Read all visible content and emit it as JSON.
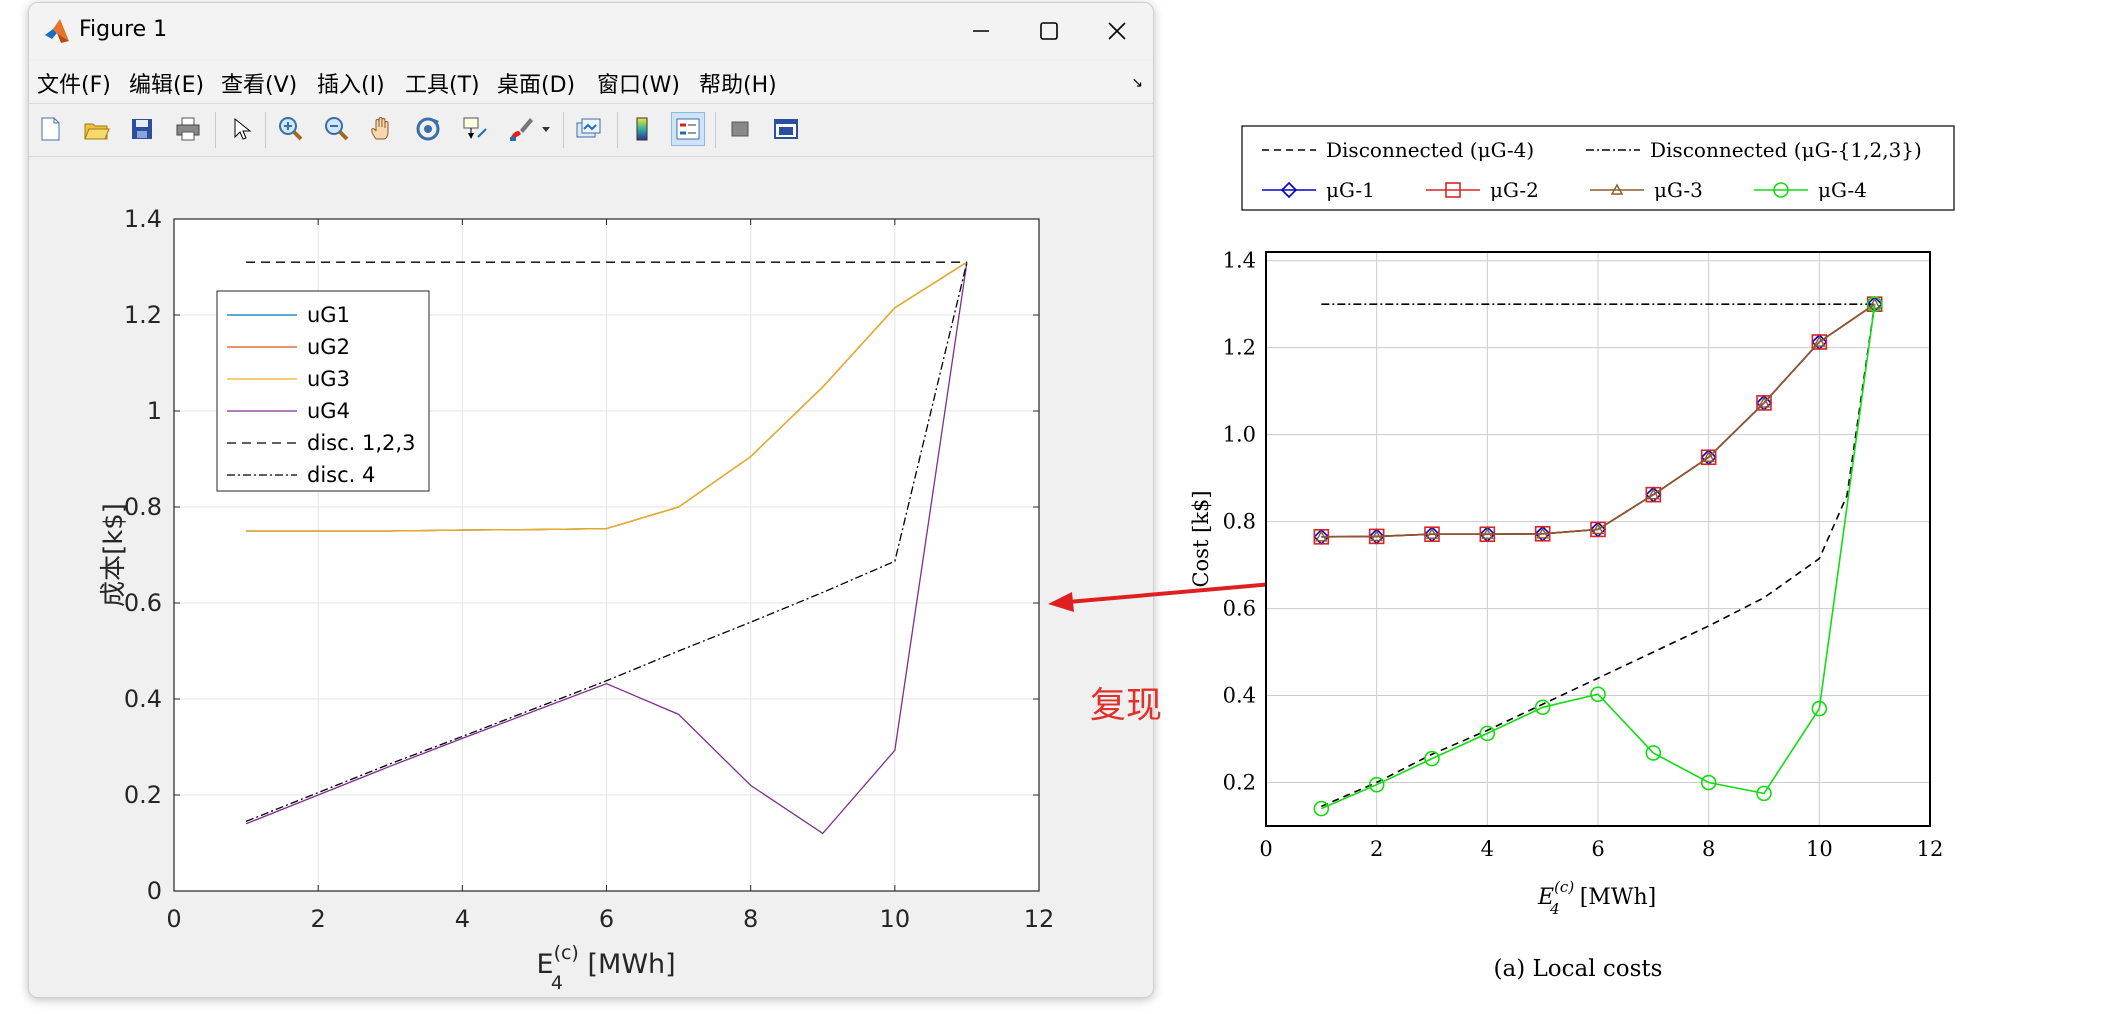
{
  "window": {
    "title": "Figure 1",
    "controls": [
      "minimize",
      "maximize",
      "close"
    ]
  },
  "menu": [
    "文件(F)",
    "编辑(E)",
    "查看(V)",
    "插入(I)",
    "工具(T)",
    "桌面(D)",
    "窗口(W)",
    "帮助(H)"
  ],
  "toolbar": [
    "new-figure-icon",
    "open-icon",
    "save-icon",
    "print-icon",
    "pointer-icon",
    "zoom-in-icon",
    "zoom-out-icon",
    "pan-icon",
    "rotate-icon",
    "data-cursor-icon",
    "brush-icon",
    "brush-dropdown-icon",
    "link-plot-icon",
    "colorbar-icon",
    "legend-icon",
    "hide-tools-icon",
    "dock-icon"
  ],
  "annotation": {
    "label": "复现",
    "color": "#e0302a"
  },
  "left_chart": {
    "type": "line",
    "xlabel_base": "E",
    "xlabel_sub": "4",
    "xlabel_sup": "(c)",
    "xlabel_unit": " [MWh]",
    "ylabel": "成本[k$]",
    "xlim": [
      0,
      12
    ],
    "ylim": [
      0,
      1.4
    ],
    "xticks": [
      "0",
      "2",
      "4",
      "6",
      "8",
      "10",
      "12"
    ],
    "yticks": [
      "0",
      "0.2",
      "0.4",
      "0.6",
      "0.8",
      "1",
      "1.2",
      "1.4"
    ],
    "grid": true,
    "legend_position": "top-left",
    "x": [
      1,
      2,
      3,
      4,
      5,
      6,
      7,
      8,
      9,
      10,
      11
    ],
    "series": [
      {
        "name": "uG1",
        "color": "#0072bd",
        "dash": "",
        "values": [
          0.75,
          0.75,
          0.75,
          0.752,
          0.753,
          0.755,
          0.8,
          0.905,
          1.05,
          1.215,
          1.31
        ]
      },
      {
        "name": "uG2",
        "color": "#d95319",
        "dash": "",
        "values": [
          0.75,
          0.75,
          0.75,
          0.752,
          0.753,
          0.755,
          0.8,
          0.905,
          1.05,
          1.215,
          1.31
        ]
      },
      {
        "name": "uG3",
        "color": "#edb120",
        "dash": "",
        "values": [
          0.75,
          0.75,
          0.75,
          0.752,
          0.753,
          0.755,
          0.8,
          0.905,
          1.05,
          1.215,
          1.31
        ]
      },
      {
        "name": "uG4",
        "color": "#7e2f8e",
        "dash": "",
        "values": [
          0.14,
          0.2,
          0.26,
          0.318,
          0.375,
          0.432,
          0.368,
          0.22,
          0.12,
          0.293,
          1.31
        ]
      },
      {
        "name": "disc. 1,2,3",
        "color": "#000000",
        "dash": "9,6",
        "values": [
          1.31,
          1.31,
          1.31,
          1.31,
          1.31,
          1.31,
          1.31,
          1.31,
          1.31,
          1.31,
          1.31
        ]
      },
      {
        "name": "disc. 4",
        "color": "#000000",
        "dash": "8,3,2,3",
        "values": [
          0.145,
          0.205,
          0.265,
          0.322,
          0.38,
          0.438,
          0.5,
          0.56,
          0.622,
          0.687,
          1.31
        ]
      }
    ]
  },
  "right_chart": {
    "type": "line",
    "caption": "(a) Local costs",
    "ylabel": "Cost [k$]",
    "xlabel_base": "E",
    "xlabel_sub": "4",
    "xlabel_sup": "(c)",
    "xlabel_unit": "[MWh]",
    "xlim": [
      0,
      12
    ],
    "ylim": [
      0.1,
      1.42
    ],
    "xticks": [
      "0",
      "2",
      "4",
      "6",
      "8",
      "10",
      "12"
    ],
    "yticks": [
      "0.2",
      "0.4",
      "0.6",
      "0.8",
      "1.0",
      "1.2",
      "1.4"
    ],
    "grid": true,
    "legend_position": "top",
    "x": [
      1,
      2,
      3,
      4,
      5,
      6,
      7,
      8,
      9,
      10,
      11
    ],
    "series": [
      {
        "name": "Disconnected (μG-4)",
        "color": "#000000",
        "dash": "7,5",
        "marker": "none",
        "x": [
          1,
          2,
          3,
          4,
          5,
          6,
          7,
          8,
          9,
          10,
          10.5,
          11
        ],
        "values": [
          0.145,
          0.2,
          0.265,
          0.32,
          0.38,
          0.44,
          0.5,
          0.56,
          0.625,
          0.715,
          0.86,
          1.3
        ]
      },
      {
        "name": "Disconnected (μG-{1,2,3})",
        "color": "#000000",
        "dash": "8,3,2,3",
        "marker": "none",
        "x": [
          1,
          11
        ],
        "values": [
          1.3,
          1.3
        ]
      },
      {
        "name": "μG-1",
        "color": "#0000cc",
        "dash": "",
        "marker": "diamond",
        "values": [
          0.765,
          0.766,
          0.771,
          0.771,
          0.772,
          0.782,
          0.862,
          0.948,
          1.073,
          1.213,
          1.3
        ]
      },
      {
        "name": "μG-2",
        "color": "#dd2222",
        "dash": "",
        "marker": "square",
        "values": [
          0.765,
          0.766,
          0.771,
          0.771,
          0.772,
          0.782,
          0.862,
          0.948,
          1.073,
          1.213,
          1.3
        ]
      },
      {
        "name": "μG-3",
        "color": "#8a5a2b",
        "dash": "",
        "marker": "triangle",
        "values": [
          0.765,
          0.766,
          0.771,
          0.771,
          0.772,
          0.782,
          0.862,
          0.948,
          1.073,
          1.213,
          1.3
        ]
      },
      {
        "name": "μG-4",
        "color": "#11dd11",
        "dash": "",
        "marker": "circle",
        "values": [
          0.14,
          0.195,
          0.255,
          0.313,
          0.373,
          0.403,
          0.268,
          0.2,
          0.175,
          0.37,
          1.3
        ]
      }
    ],
    "legend_rows": [
      [
        {
          "name": "Disconnected (μG-4)",
          "idx": 0
        },
        {
          "name": "Disconnected (μG-{1,2,3})",
          "idx": 1
        }
      ],
      [
        {
          "name": "μG-1",
          "idx": 2
        },
        {
          "name": "μG-2",
          "idx": 3
        },
        {
          "name": "μG-3",
          "idx": 4
        },
        {
          "name": "μG-4",
          "idx": 5
        }
      ]
    ]
  }
}
